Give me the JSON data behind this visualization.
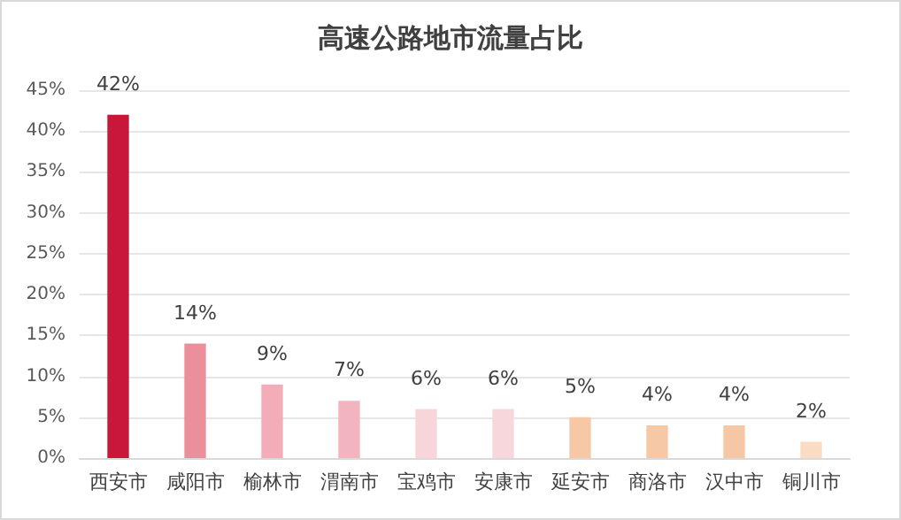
{
  "chart_data": {
    "type": "bar",
    "title": "高速公路地市流量占比",
    "categories": [
      "西安市",
      "咸阳市",
      "榆林市",
      "渭南市",
      "宝鸡市",
      "安康市",
      "延安市",
      "商洛市",
      "汉中市",
      "铜川市"
    ],
    "values": [
      42,
      14,
      9,
      7,
      6,
      6,
      5,
      4,
      4,
      2
    ],
    "colors": [
      "#c8183a",
      "#ec8f9c",
      "#f2adb8",
      "#f2b5bf",
      "#f8d5da",
      "#f8d7dc",
      "#f6c8a5",
      "#f6c8a5",
      "#f6c7a4",
      "#fadcc5"
    ],
    "value_labels": [
      "42%",
      "14%",
      "9%",
      "7%",
      "6%",
      "6%",
      "5%",
      "4%",
      "4%",
      "2%"
    ],
    "ylim": [
      0,
      45
    ],
    "yticks": [
      {
        "value": 0,
        "label": "0%"
      },
      {
        "value": 5,
        "label": "5%"
      },
      {
        "value": 10,
        "label": "10%"
      },
      {
        "value": 15,
        "label": "15%"
      },
      {
        "value": 20,
        "label": "20%"
      },
      {
        "value": 25,
        "label": "25%"
      },
      {
        "value": 30,
        "label": "30%"
      },
      {
        "value": 35,
        "label": "35%"
      },
      {
        "value": 40,
        "label": "40%"
      },
      {
        "value": 45,
        "label": "45%"
      }
    ],
    "grid": "y"
  }
}
